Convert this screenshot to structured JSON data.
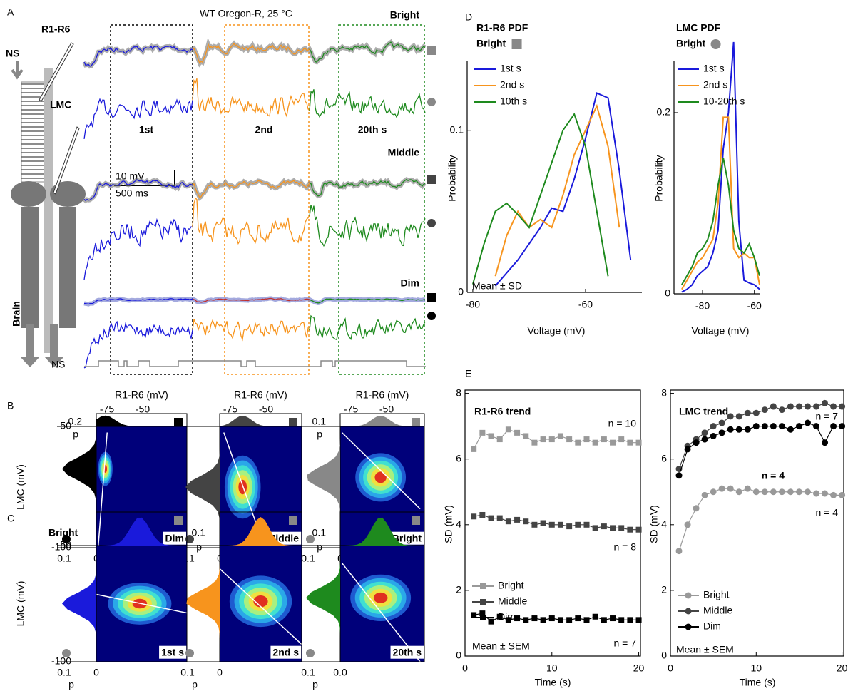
{
  "panel_a": {
    "label": "A",
    "title": "WT Oregon-R, 25 °C",
    "conditions": [
      "Bright",
      "Middle",
      "Dim"
    ],
    "cells": [
      "R1-R6",
      "LMC"
    ],
    "ns": [
      "NS",
      "NS"
    ],
    "brain": "Brain",
    "windows": [
      "1st",
      "2nd",
      "20th s"
    ],
    "scale": [
      "10 mV",
      "500 ms"
    ]
  },
  "panel_b": {
    "label": "B",
    "y_label": "LMC (mV)",
    "y_ticks": [
      "-50",
      "-100"
    ],
    "columns": [
      {
        "x_label": "R1-R6 (mV)",
        "x_ticks": [
          "-75",
          "-50"
        ],
        "p_ticks": [
          "0.2",
          "p"
        ],
        "bottom_ticks": [
          "0.1",
          "0"
        ],
        "name": "Dim"
      },
      {
        "x_label": "R1-R6 (mV)",
        "x_ticks": [
          "-75",
          "-50"
        ],
        "bottom_ticks": [
          "0.1",
          "0"
        ],
        "name": "Middle"
      },
      {
        "x_label": "R1-R6 (mV)",
        "x_ticks": [
          "-75",
          "-50"
        ],
        "p_ticks": [
          "0.1",
          "p"
        ],
        "bottom_ticks": [
          "0.1",
          "0"
        ],
        "name": "Bright"
      }
    ]
  },
  "panel_c": {
    "label": "C",
    "condition": "Bright",
    "y_label": "LMC (mV)",
    "y_ticks": [
      "-50",
      "-100"
    ],
    "columns": [
      {
        "bottom_ticks": [
          "0.1",
          "0"
        ],
        "p_label": "p",
        "name": "1st s"
      },
      {
        "p_ticks": [
          "0.1",
          "p"
        ],
        "bottom_ticks": [
          "0.1",
          "0"
        ],
        "p_label": "p",
        "name": "2nd s"
      },
      {
        "p_ticks": [
          "0.1",
          "p"
        ],
        "bottom_ticks": [
          "0.1",
          "0.0"
        ],
        "p_label": "p",
        "name": "20th s"
      }
    ]
  },
  "panel_d": {
    "label": "D"
  },
  "panel_e": {
    "label": "E"
  },
  "chart_data": [
    {
      "type": "line",
      "title": "R1-R6 PDF",
      "subtitle": "Bright",
      "x_label": "Voltage (mV)",
      "y_label": "Probability",
      "legend": "upper left",
      "annotations": [
        {
          "text": "Mean ± SD",
          "color": "#000"
        }
      ],
      "x": [
        -80,
        -78,
        -76,
        -74,
        -72,
        -70,
        -68,
        -66,
        -64,
        -62,
        -60,
        -58,
        -56,
        -54,
        -52
      ],
      "series": [
        {
          "name": "1st s",
          "color": "#1a1adb",
          "values": [
            null,
            null,
            0.004,
            0.012,
            0.02,
            0.03,
            0.04,
            0.052,
            0.05,
            0.07,
            0.095,
            0.123,
            0.12,
            0.075,
            0.02
          ]
        },
        {
          "name": "2nd s",
          "color": "#f7941d",
          "values": [
            null,
            null,
            0.01,
            0.035,
            0.05,
            0.04,
            0.045,
            0.04,
            0.06,
            0.085,
            0.1,
            0.115,
            0.09,
            0.04,
            null
          ]
        },
        {
          "name": "10th s",
          "color": "#1e8a1e",
          "values": [
            0.005,
            0.03,
            0.05,
            0.055,
            0.048,
            0.04,
            0.06,
            0.08,
            0.1,
            0.11,
            0.09,
            0.05,
            0.01,
            null,
            null
          ]
        }
      ],
      "xlim": [
        -81,
        -50
      ],
      "ylim": [
        0,
        0.143
      ],
      "xticks": [
        -80,
        -60
      ],
      "yticks": [
        0,
        0.1
      ]
    },
    {
      "type": "line",
      "title": "LMC PDF",
      "subtitle": "Bright",
      "x_label": "Voltage (mV)",
      "y_label": "Probability",
      "legend": "upper left",
      "x": [
        -88,
        -86,
        -84,
        -82,
        -80,
        -78,
        -76,
        -74,
        -72,
        -70,
        -68,
        -66,
        -64,
        -62,
        -60,
        -58
      ],
      "series": [
        {
          "name": "1st s",
          "color": "#1a1adb",
          "values": [
            0.002,
            0.005,
            0.01,
            0.02,
            0.025,
            0.03,
            0.045,
            0.07,
            0.16,
            0.2,
            0.278,
            0.08,
            0.015,
            0.012,
            0.01,
            0.005
          ]
        },
        {
          "name": "2nd s",
          "color": "#f7941d",
          "values": [
            0.005,
            0.015,
            0.025,
            0.035,
            0.04,
            0.05,
            0.06,
            0.1,
            0.195,
            0.195,
            0.05,
            0.04,
            0.045,
            0.04,
            0.04,
            0.01
          ]
        },
        {
          "name": "10-20th s",
          "color": "#1e8a1e",
          "values": [
            0.01,
            0.02,
            0.03,
            0.045,
            0.05,
            0.06,
            0.08,
            0.12,
            0.15,
            0.12,
            0.07,
            0.05,
            0.045,
            0.055,
            0.04,
            0.02
          ]
        }
      ],
      "xlim": [
        -91,
        -58
      ],
      "ylim": [
        0,
        0.285
      ],
      "xticks": [
        -80,
        -60
      ],
      "yticks": [
        0,
        0.2
      ]
    },
    {
      "type": "line",
      "marker": "square",
      "title": "R1-R6 trend",
      "x_label": "Time (s)",
      "y_label": "SD (mV)",
      "legend": "lower left",
      "annotations": [
        {
          "text": "n = 10",
          "color": "#999"
        },
        {
          "text": "n = 8",
          "color": "#000"
        },
        {
          "text": "n = 7",
          "color": "#000"
        },
        {
          "text": "Mean ± SEM",
          "color": "#000"
        }
      ],
      "x": [
        1,
        2,
        3,
        4,
        5,
        6,
        7,
        8,
        9,
        10,
        11,
        12,
        13,
        14,
        15,
        16,
        17,
        18,
        19,
        20
      ],
      "series": [
        {
          "name": "Bright",
          "color": "#999999",
          "values": [
            6.3,
            6.8,
            6.7,
            6.6,
            6.9,
            6.8,
            6.7,
            6.5,
            6.6,
            6.6,
            6.7,
            6.6,
            6.5,
            6.6,
            6.5,
            6.6,
            6.5,
            6.6,
            6.5,
            6.5
          ]
        },
        {
          "name": "Middle",
          "color": "#444444",
          "values": [
            4.25,
            4.3,
            4.2,
            4.2,
            4.1,
            4.15,
            4.1,
            4.0,
            4.05,
            4.0,
            4.0,
            3.95,
            4.0,
            4.0,
            3.9,
            3.95,
            3.9,
            3.9,
            3.85,
            3.85
          ]
        },
        {
          "name": "Dim",
          "color": "#000000",
          "values": [
            1.25,
            1.3,
            1.05,
            1.2,
            1.1,
            1.15,
            1.1,
            1.15,
            1.1,
            1.15,
            1.1,
            1.1,
            1.15,
            1.1,
            1.2,
            1.1,
            1.15,
            1.1,
            1.1,
            1.1
          ]
        }
      ],
      "xlim": [
        0,
        20.2
      ],
      "ylim": [
        0,
        8.1
      ],
      "xticks": [
        0,
        10,
        20
      ],
      "yticks": [
        0,
        2,
        4,
        6,
        8
      ]
    },
    {
      "type": "line",
      "marker": "circle",
      "title": "LMC trend",
      "x_label": "Time (s)",
      "y_label": "SD (mV)",
      "legend": "lower left",
      "annotations": [
        {
          "text": "n = 7",
          "color": "#444"
        },
        {
          "text": "n = 4",
          "color": "#000"
        },
        {
          "text": "n = 4",
          "color": "#999"
        },
        {
          "text": "Mean ± SEM",
          "color": "#000"
        }
      ],
      "x": [
        1,
        2,
        3,
        4,
        5,
        6,
        7,
        8,
        9,
        10,
        11,
        12,
        13,
        14,
        15,
        16,
        17,
        18,
        19,
        20
      ],
      "series": [
        {
          "name": "Bright",
          "color": "#999999",
          "values": [
            3.2,
            4.0,
            4.5,
            4.9,
            5.0,
            5.1,
            5.1,
            5.0,
            5.1,
            5.0,
            5.0,
            5.0,
            5.0,
            5.0,
            5.0,
            5.0,
            4.95,
            4.95,
            4.9,
            4.9
          ]
        },
        {
          "name": "Middle",
          "color": "#444444",
          "values": [
            5.7,
            6.4,
            6.6,
            6.8,
            7.0,
            7.1,
            7.3,
            7.3,
            7.4,
            7.4,
            7.5,
            7.6,
            7.5,
            7.6,
            7.6,
            7.6,
            7.6,
            7.7,
            7.6,
            7.6
          ]
        },
        {
          "name": "Dim",
          "color": "#000000",
          "values": [
            5.5,
            6.3,
            6.5,
            6.6,
            6.7,
            6.8,
            6.9,
            6.9,
            6.9,
            7.0,
            7.0,
            7.0,
            7.0,
            6.9,
            7.0,
            7.1,
            7.0,
            6.5,
            7.0,
            7.0
          ]
        }
      ],
      "xlim": [
        0,
        20.2
      ],
      "ylim": [
        0,
        8.1
      ],
      "xticks": [
        0,
        10,
        20
      ],
      "yticks": [
        0,
        2,
        4,
        6,
        8
      ]
    }
  ]
}
